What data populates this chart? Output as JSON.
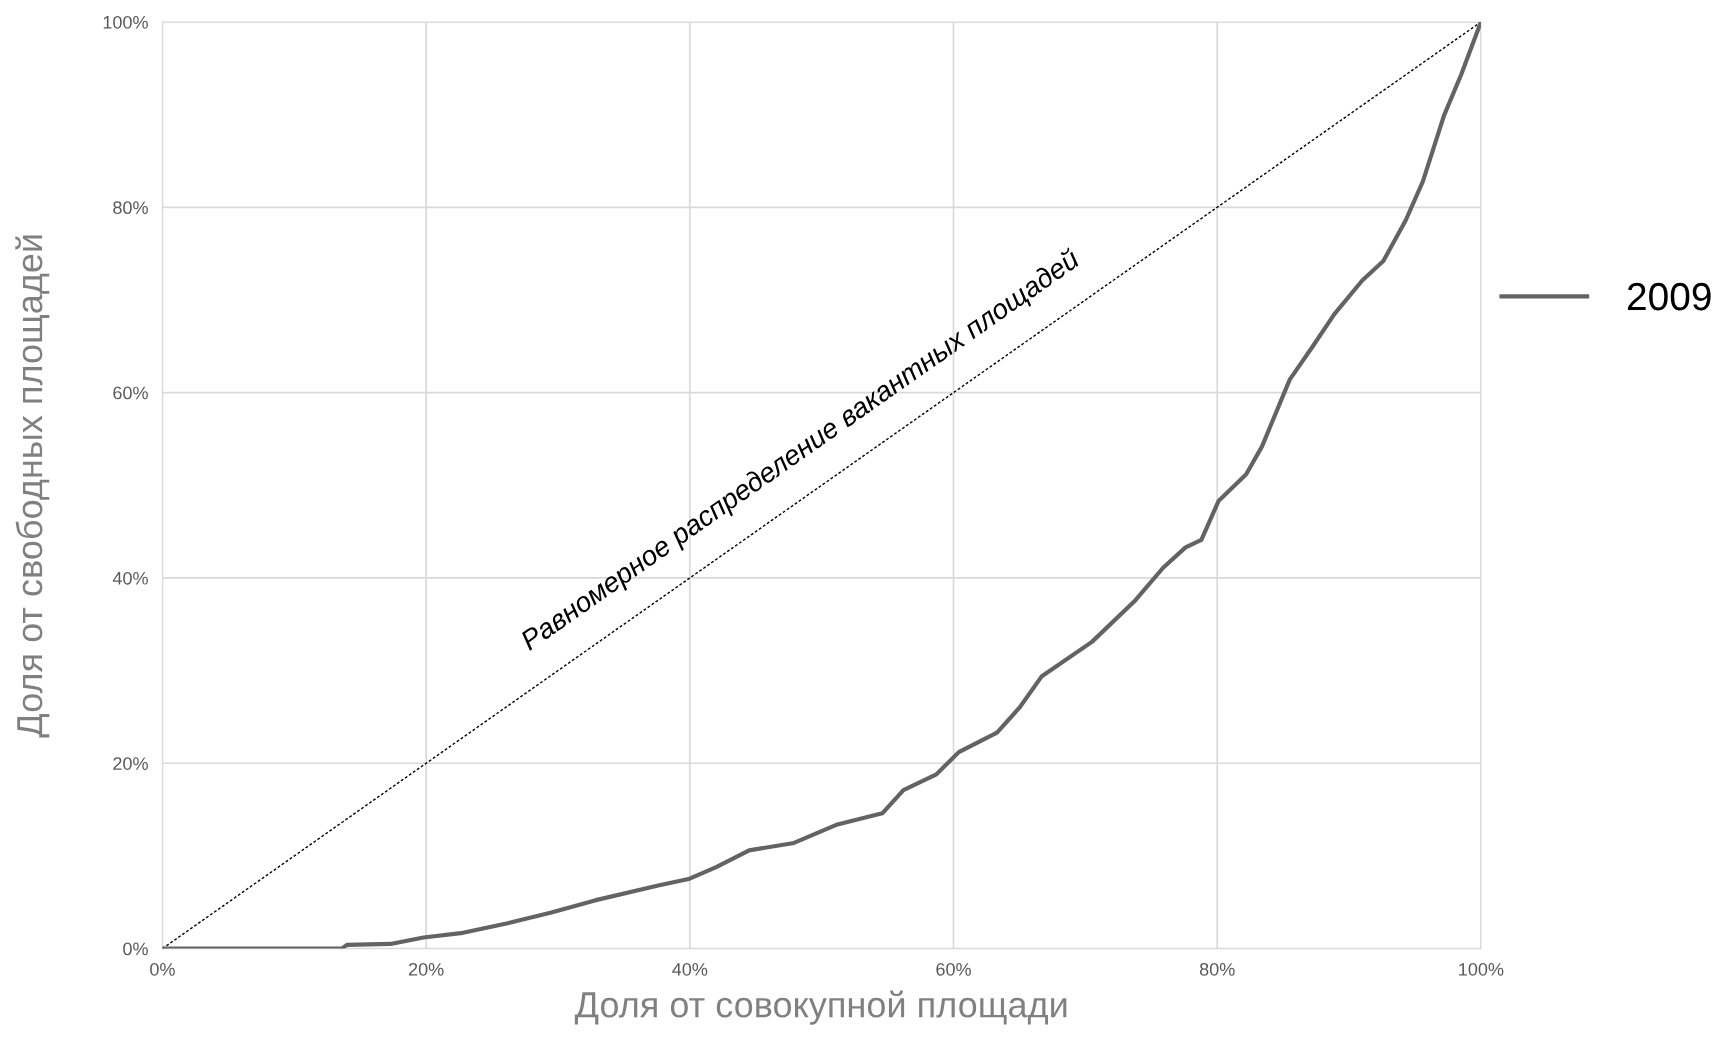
{
  "chart_data": {
    "type": "line",
    "xlabel": "Доля от совокупной площади",
    "ylabel": "Доля от свободных площадей",
    "xlim": [
      0,
      100
    ],
    "ylim": [
      0,
      100
    ],
    "xticks": [
      {
        "value": 0,
        "label": "0%"
      },
      {
        "value": 20,
        "label": "20%"
      },
      {
        "value": 40,
        "label": "40%"
      },
      {
        "value": 60,
        "label": "60%"
      },
      {
        "value": 80,
        "label": "80%"
      },
      {
        "value": 100,
        "label": "100%"
      }
    ],
    "yticks": [
      {
        "value": 0,
        "label": "0%"
      },
      {
        "value": 20,
        "label": "20%"
      },
      {
        "value": 40,
        "label": "40%"
      },
      {
        "value": 60,
        "label": "60%"
      },
      {
        "value": 80,
        "label": "80%"
      },
      {
        "value": 100,
        "label": "100%"
      }
    ],
    "grid": true,
    "legend": "right",
    "marker": "none",
    "series": [
      {
        "color": "#000000",
        "line_style": "dotted",
        "x": [
          0,
          100
        ],
        "values": [
          0,
          100
        ]
      },
      {
        "name": "2009",
        "color": "#636363",
        "line_style": "solid",
        "x": [
          0,
          13.6,
          14,
          17.3,
          19.8,
          22.8,
          26.1,
          29.5,
          32.8,
          37.6,
          39.9,
          42,
          44.5,
          47.9,
          51.2,
          54.6,
          56.2,
          58.7,
          60.4,
          63.3,
          65,
          66.7,
          70.5,
          73.8,
          75.9,
          77.6,
          78.8,
          80.1,
          82.2,
          83.4,
          85.5,
          87.2,
          88.9,
          91,
          92.6,
          94.3,
          95.6,
          97.2,
          98.5,
          100
        ],
        "values": [
          0,
          0,
          0.4,
          0.5,
          1.2,
          1.7,
          2.7,
          3.9,
          5.2,
          6.8,
          7.5,
          8.8,
          10.6,
          11.4,
          13.4,
          14.6,
          17.1,
          18.8,
          21.2,
          23.3,
          26,
          29.4,
          33.1,
          37.6,
          41.1,
          43.3,
          44.1,
          48.3,
          51.2,
          54.2,
          61.4,
          64.9,
          68.5,
          72.1,
          74.2,
          78.6,
          82.8,
          89.9,
          94.3,
          100
        ]
      }
    ],
    "annotations": [
      "Равномерное распределение вакантных площадей"
    ]
  }
}
